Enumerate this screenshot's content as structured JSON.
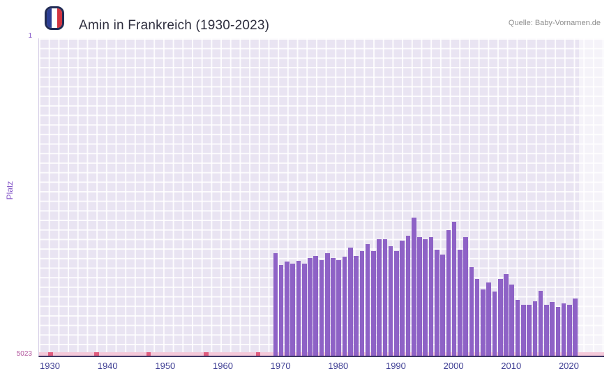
{
  "header": {
    "title": "Amin in Frankreich (1930-2023)",
    "source": "Quelle: Baby-Vornamen.de"
  },
  "colors": {
    "bar": "#8e62c6",
    "strip": "#f4c9da",
    "mark": "#e05c7e",
    "highlight": "rgba(255,255,255,0.55)",
    "axis": "#3d3763",
    "tick_label": "#3f3f94",
    "y_label": "#8456c8",
    "flag_blue": "#2c3e94",
    "flag_white": "#ffffff",
    "flag_red": "#d23440",
    "plot_background": "#e9e4f2"
  },
  "chart_data": {
    "type": "bar",
    "title": "Amin in Frankreich (1930-2023)",
    "xlabel": "",
    "ylabel": "Platz",
    "ylim": [
      1,
      5023
    ],
    "y_axis_inverted": true,
    "y_tick_top": "1",
    "y_tick_bottom": "5023",
    "x_range": [
      1928,
      2026
    ],
    "xticks": [
      1930,
      1940,
      1950,
      1960,
      1970,
      1980,
      1990,
      2000,
      2010,
      2020
    ],
    "grid": true,
    "legend_position": "none",
    "highlight_from": 2021.6,
    "low_rank_years": [
      1930,
      1938,
      1947,
      1957,
      1966
    ],
    "series": [
      {
        "name": "Platz",
        "years": [
          1969,
          1970,
          1971,
          1972,
          1973,
          1974,
          1975,
          1976,
          1977,
          1978,
          1979,
          1980,
          1981,
          1982,
          1983,
          1984,
          1985,
          1986,
          1987,
          1988,
          1989,
          1990,
          1991,
          1992,
          1993,
          1994,
          1995,
          1996,
          1997,
          1998,
          1999,
          2000,
          2001,
          2002,
          2003,
          2004,
          2005,
          2006,
          2007,
          2008,
          2009,
          2010,
          2011,
          2012,
          2013,
          2014,
          2015,
          2016,
          2017,
          2018,
          2019,
          2020,
          2021
        ],
        "ranks": [
          3400,
          3590,
          3530,
          3570,
          3520,
          3570,
          3480,
          3445,
          3515,
          3400,
          3480,
          3515,
          3455,
          3310,
          3445,
          3365,
          3255,
          3365,
          3180,
          3180,
          3290,
          3365,
          3200,
          3125,
          2840,
          3145,
          3180,
          3145,
          3345,
          3420,
          3035,
          2905,
          3345,
          3145,
          3625,
          3810,
          3975,
          3865,
          4010,
          3810,
          3730,
          3895,
          4140,
          4215,
          4215,
          4160,
          3995,
          4215,
          4175,
          4250,
          4195,
          4215,
          4120
        ]
      }
    ]
  }
}
